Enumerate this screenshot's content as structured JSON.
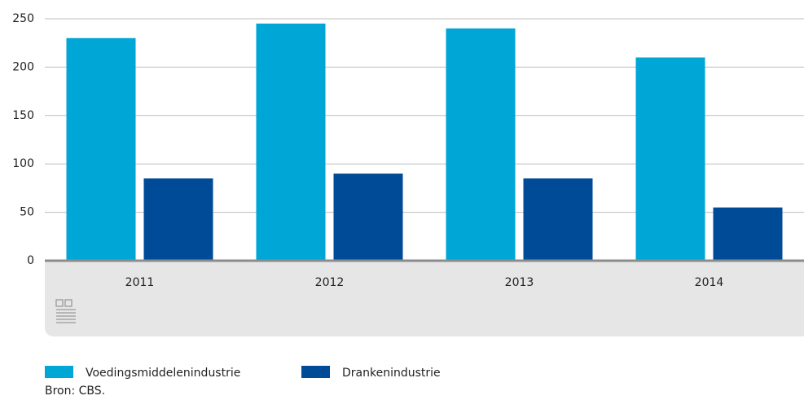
{
  "chart_data": {
    "type": "bar",
    "categories": [
      "2011",
      "2012",
      "2013",
      "2014"
    ],
    "series": [
      {
        "name": "Voedingsmiddelenindustrie",
        "color": "#00a6d6",
        "values": [
          230,
          245,
          240,
          210
        ]
      },
      {
        "name": "Drankenindustrie",
        "color": "#004b97",
        "values": [
          85,
          90,
          85,
          55
        ]
      }
    ],
    "ylim": [
      0,
      250
    ],
    "yticks": [
      0,
      50,
      100,
      150,
      200,
      250
    ],
    "grid": true,
    "source": "Bron: CBS."
  }
}
